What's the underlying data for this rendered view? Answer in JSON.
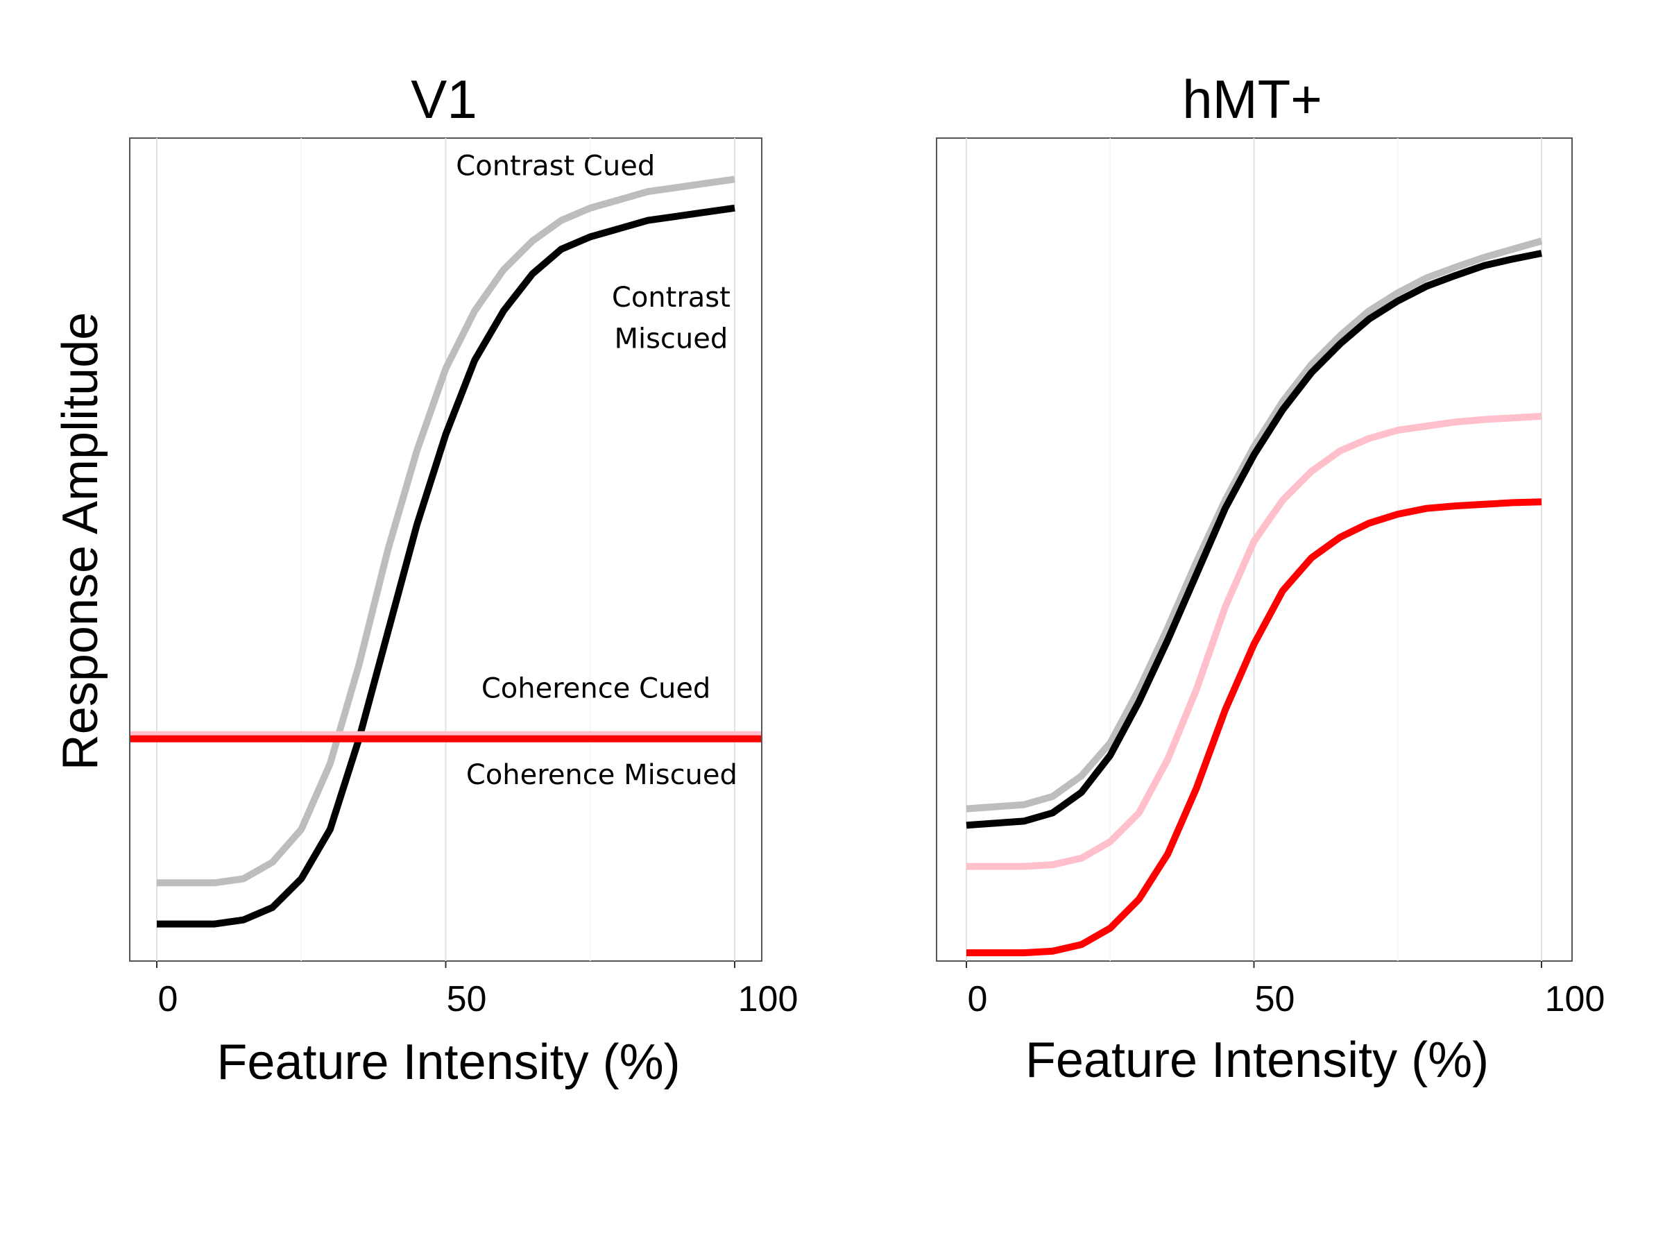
{
  "chart_data": [
    {
      "type": "line",
      "title": "V1",
      "xlabel": "Feature Intensity (%)",
      "ylabel": "Response Amplitude",
      "xlim": [
        0,
        100
      ],
      "ylim": [
        0,
        1
      ],
      "xticks": [
        "0",
        "50",
        "100"
      ],
      "grid": true,
      "yticks_visible": false,
      "series": [
        {
          "id": "contrast_cued",
          "color": "#bdbdbd",
          "x": [
            0,
            10,
            15,
            20,
            25,
            30,
            35,
            40,
            45,
            50,
            55,
            60,
            65,
            70,
            75,
            80,
            85,
            90,
            95,
            100
          ],
          "y": [
            0.095,
            0.095,
            0.1,
            0.12,
            0.16,
            0.24,
            0.36,
            0.5,
            0.62,
            0.72,
            0.79,
            0.84,
            0.875,
            0.9,
            0.915,
            0.925,
            0.935,
            0.94,
            0.945,
            0.95
          ]
        },
        {
          "id": "contrast_miscued",
          "color": "#000000",
          "x": [
            0,
            10,
            15,
            20,
            25,
            30,
            35,
            40,
            45,
            50,
            55,
            60,
            65,
            70,
            75,
            80,
            85,
            90,
            95,
            100
          ],
          "y": [
            0.045,
            0.045,
            0.05,
            0.065,
            0.1,
            0.16,
            0.27,
            0.4,
            0.53,
            0.64,
            0.73,
            0.79,
            0.835,
            0.865,
            0.88,
            0.89,
            0.9,
            0.905,
            0.91,
            0.915
          ]
        },
        {
          "id": "coherence_cued",
          "color": "#ffc0cb",
          "x": [
            -5,
            105
          ],
          "y": [
            0.275,
            0.275
          ]
        },
        {
          "id": "coherence_miscued",
          "color": "#ff0000",
          "x": [
            -5,
            105
          ],
          "y": [
            0.27,
            0.27
          ]
        }
      ],
      "annotations": [
        {
          "text": "Contrast Cued",
          "x": 69,
          "y": 0.955
        },
        {
          "text": "Contrast",
          "x": 89,
          "y": 0.795
        },
        {
          "text": "Miscued",
          "x": 89,
          "y": 0.745
        },
        {
          "text": "Coherence Cued",
          "x": 76,
          "y": 0.32
        },
        {
          "text": "Coherence Miscued",
          "x": 77,
          "y": 0.215
        }
      ]
    },
    {
      "type": "line",
      "title": "hMT+",
      "xlabel": "Feature Intensity (%)",
      "ylabel": "",
      "xlim": [
        0,
        100
      ],
      "ylim": [
        0,
        1
      ],
      "xticks": [
        "0",
        "50",
        "100"
      ],
      "grid": true,
      "yticks_visible": false,
      "series": [
        {
          "id": "contrast_cued",
          "color": "#bdbdbd",
          "x": [
            0,
            10,
            15,
            20,
            25,
            30,
            35,
            40,
            45,
            50,
            55,
            60,
            65,
            70,
            75,
            80,
            85,
            90,
            95,
            100
          ],
          "y": [
            0.185,
            0.19,
            0.2,
            0.225,
            0.265,
            0.33,
            0.405,
            0.485,
            0.56,
            0.625,
            0.68,
            0.725,
            0.76,
            0.79,
            0.812,
            0.83,
            0.843,
            0.855,
            0.865,
            0.875
          ]
        },
        {
          "id": "contrast_miscued",
          "color": "#000000",
          "x": [
            0,
            10,
            15,
            20,
            25,
            30,
            35,
            40,
            45,
            50,
            55,
            60,
            65,
            70,
            75,
            80,
            85,
            90,
            95,
            100
          ],
          "y": [
            0.165,
            0.17,
            0.18,
            0.205,
            0.25,
            0.315,
            0.39,
            0.47,
            0.55,
            0.615,
            0.67,
            0.715,
            0.75,
            0.78,
            0.802,
            0.82,
            0.833,
            0.845,
            0.853,
            0.86
          ]
        },
        {
          "id": "coherence_cued",
          "color": "#ffc0cb",
          "x": [
            0,
            10,
            15,
            20,
            25,
            30,
            35,
            40,
            45,
            50,
            55,
            60,
            65,
            70,
            75,
            80,
            85,
            90,
            95,
            100
          ],
          "y": [
            0.115,
            0.115,
            0.117,
            0.125,
            0.145,
            0.18,
            0.245,
            0.33,
            0.43,
            0.51,
            0.56,
            0.595,
            0.62,
            0.635,
            0.645,
            0.65,
            0.655,
            0.658,
            0.66,
            0.662
          ]
        },
        {
          "id": "coherence_miscued",
          "color": "#ff0000",
          "x": [
            0,
            10,
            15,
            20,
            25,
            30,
            35,
            40,
            45,
            50,
            55,
            60,
            65,
            70,
            75,
            80,
            85,
            90,
            95,
            100
          ],
          "y": [
            0.01,
            0.01,
            0.012,
            0.02,
            0.04,
            0.075,
            0.13,
            0.21,
            0.305,
            0.385,
            0.45,
            0.49,
            0.515,
            0.532,
            0.543,
            0.55,
            0.553,
            0.555,
            0.557,
            0.558
          ]
        }
      ],
      "annotations": []
    }
  ]
}
